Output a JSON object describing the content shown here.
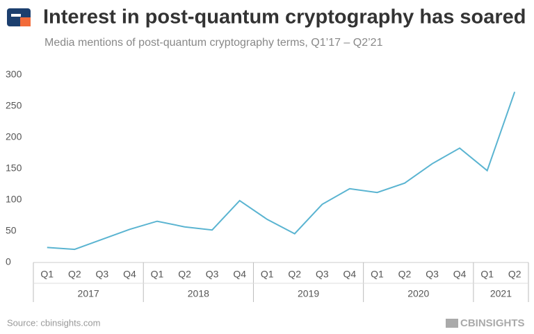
{
  "chart_data": {
    "type": "line",
    "title": "Interest in post-quantum cryptography has soared",
    "subtitle": "Media mentions of post-quantum cryptography terms, Q1’17 – Q2’21",
    "groups": [
      {
        "name": "2017",
        "categories": [
          "Q1",
          "Q2",
          "Q3",
          "Q4"
        ]
      },
      {
        "name": "2018",
        "categories": [
          "Q1",
          "Q2",
          "Q3",
          "Q4"
        ]
      },
      {
        "name": "2019",
        "categories": [
          "Q1",
          "Q2",
          "Q3",
          "Q4"
        ]
      },
      {
        "name": "2020",
        "categories": [
          "Q1",
          "Q2",
          "Q3",
          "Q4"
        ]
      },
      {
        "name": "2021",
        "categories": [
          "Q1",
          "Q2"
        ]
      }
    ],
    "values": [
      24,
      21,
      37,
      53,
      66,
      57,
      52,
      99,
      69,
      46,
      93,
      118,
      112,
      127,
      158,
      183,
      147,
      273
    ],
    "color": "#5ab4d1",
    "ylim": [
      0,
      300
    ],
    "yticks": [
      0,
      50,
      100,
      150,
      200,
      250,
      300
    ],
    "grid": false,
    "source": "Source: cbinsights.com",
    "brand": "CBINSIGHTS"
  }
}
